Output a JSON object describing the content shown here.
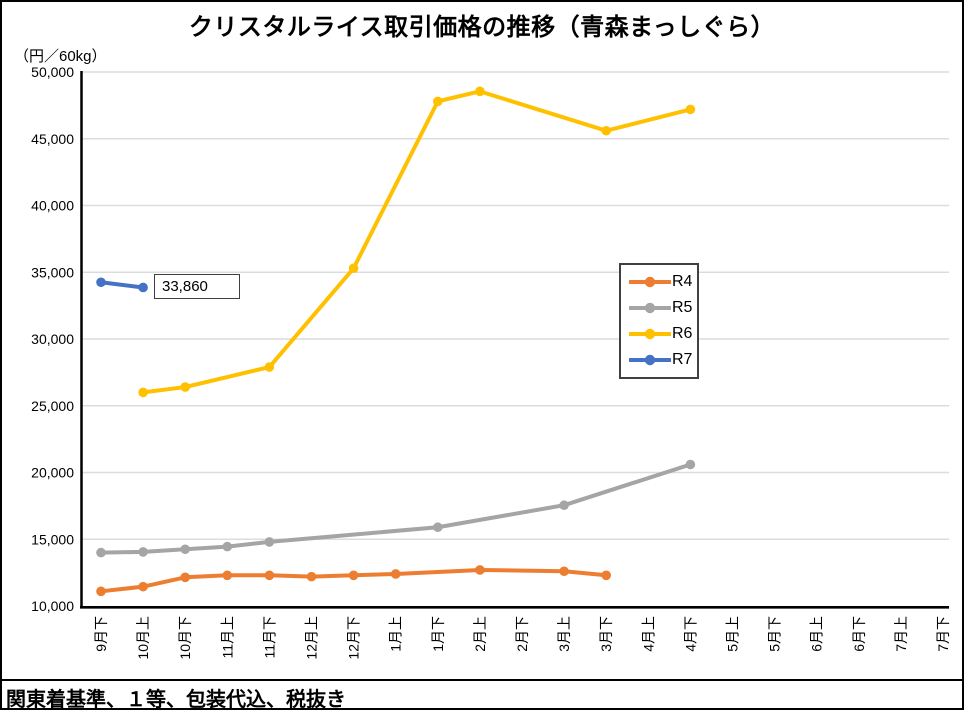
{
  "title": "クリスタルライス取引価格の推移（青森まっしぐら）",
  "y_axis_unit": "（円／60kg）",
  "footer_note": "関東着基準、１等、包装代込、税抜き",
  "annotation": {
    "label": "33,860",
    "series": "R7",
    "category": "10月上"
  },
  "chart_data": {
    "type": "line",
    "title": "クリスタルライス取引価格の推移（青森まっしぐら）",
    "ylabel": "（円／60kg）",
    "ylim": [
      10000,
      50000
    ],
    "y_ticks": [
      50000,
      45000,
      40000,
      35000,
      30000,
      25000,
      20000,
      15000,
      10000
    ],
    "grid": "horizontal",
    "legend_position": "inside-right-box",
    "categories": [
      "9月下",
      "10月上",
      "10月下",
      "11月上",
      "11月下",
      "12月上",
      "12月下",
      "1月上",
      "1月下",
      "2月上",
      "2月下",
      "3月上",
      "3月下",
      "4月上",
      "4月下",
      "5月上",
      "5月下",
      "6月上",
      "6月下",
      "7月上",
      "7月下"
    ],
    "series": [
      {
        "name": "R4",
        "color": "#ED7D31",
        "points": [
          [
            "9月下",
            11100
          ],
          [
            "10月上",
            11450
          ],
          [
            "10月下",
            12150
          ],
          [
            "11月上",
            12300
          ],
          [
            "11月下",
            12300
          ],
          [
            "12月上",
            12200
          ],
          [
            "12月下",
            12300
          ],
          [
            "1月上",
            12400
          ],
          [
            "2月上",
            12700
          ],
          [
            "3月上",
            12600
          ],
          [
            "3月下",
            12300
          ]
        ]
      },
      {
        "name": "R5",
        "color": "#A5A5A5",
        "points": [
          [
            "9月下",
            14000
          ],
          [
            "10月上",
            14050
          ],
          [
            "10月下",
            14250
          ],
          [
            "11月上",
            14450
          ],
          [
            "11月下",
            14800
          ],
          [
            "1月下",
            15900
          ],
          [
            "3月上",
            17550
          ],
          [
            "4月下",
            20600
          ]
        ]
      },
      {
        "name": "R6",
        "color": "#FFC000",
        "points": [
          [
            "10月上",
            26000
          ],
          [
            "10月下",
            26400
          ],
          [
            "11月下",
            27900
          ],
          [
            "12月下",
            35300
          ],
          [
            "1月下",
            47800
          ],
          [
            "2月上",
            48550
          ],
          [
            "3月下",
            45600
          ],
          [
            "4月下",
            47200
          ]
        ]
      },
      {
        "name": "R7",
        "color": "#4472C4",
        "points": [
          [
            "9月下",
            34250
          ],
          [
            "10月上",
            33860
          ]
        ]
      }
    ]
  }
}
